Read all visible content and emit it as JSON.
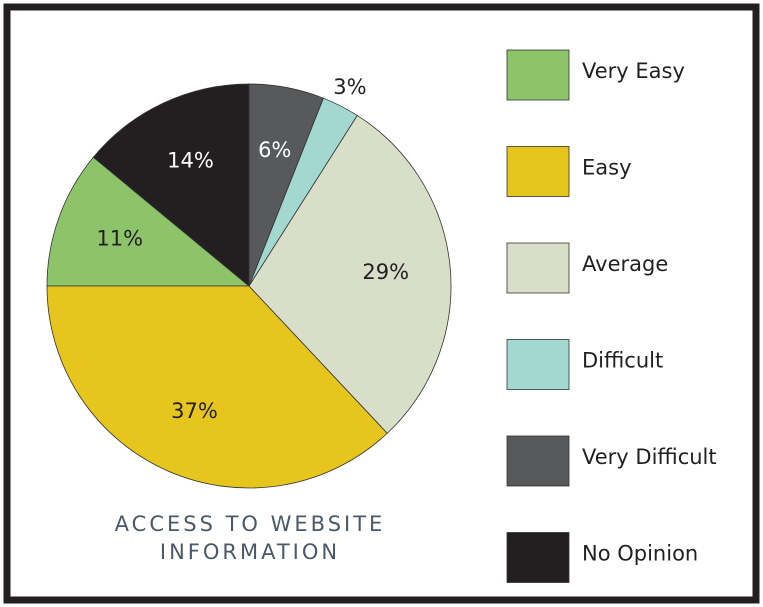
{
  "chart_data": {
    "type": "pie",
    "title": "ACCESS TO WEBSITE INFORMATION",
    "categories": [
      "Very Easy",
      "Easy",
      "Average",
      "Difficult",
      "Very Difficult",
      "No Opinion"
    ],
    "values": [
      11,
      37,
      29,
      3,
      6,
      14
    ],
    "value_labels": [
      "11%",
      "37%",
      "29%",
      "3%",
      "6%",
      "14%"
    ],
    "colors": [
      "#8dc46a",
      "#e6c51c",
      "#d9dec8",
      "#a2d8d0",
      "#58595b",
      "#231f20"
    ],
    "legend": "right"
  }
}
